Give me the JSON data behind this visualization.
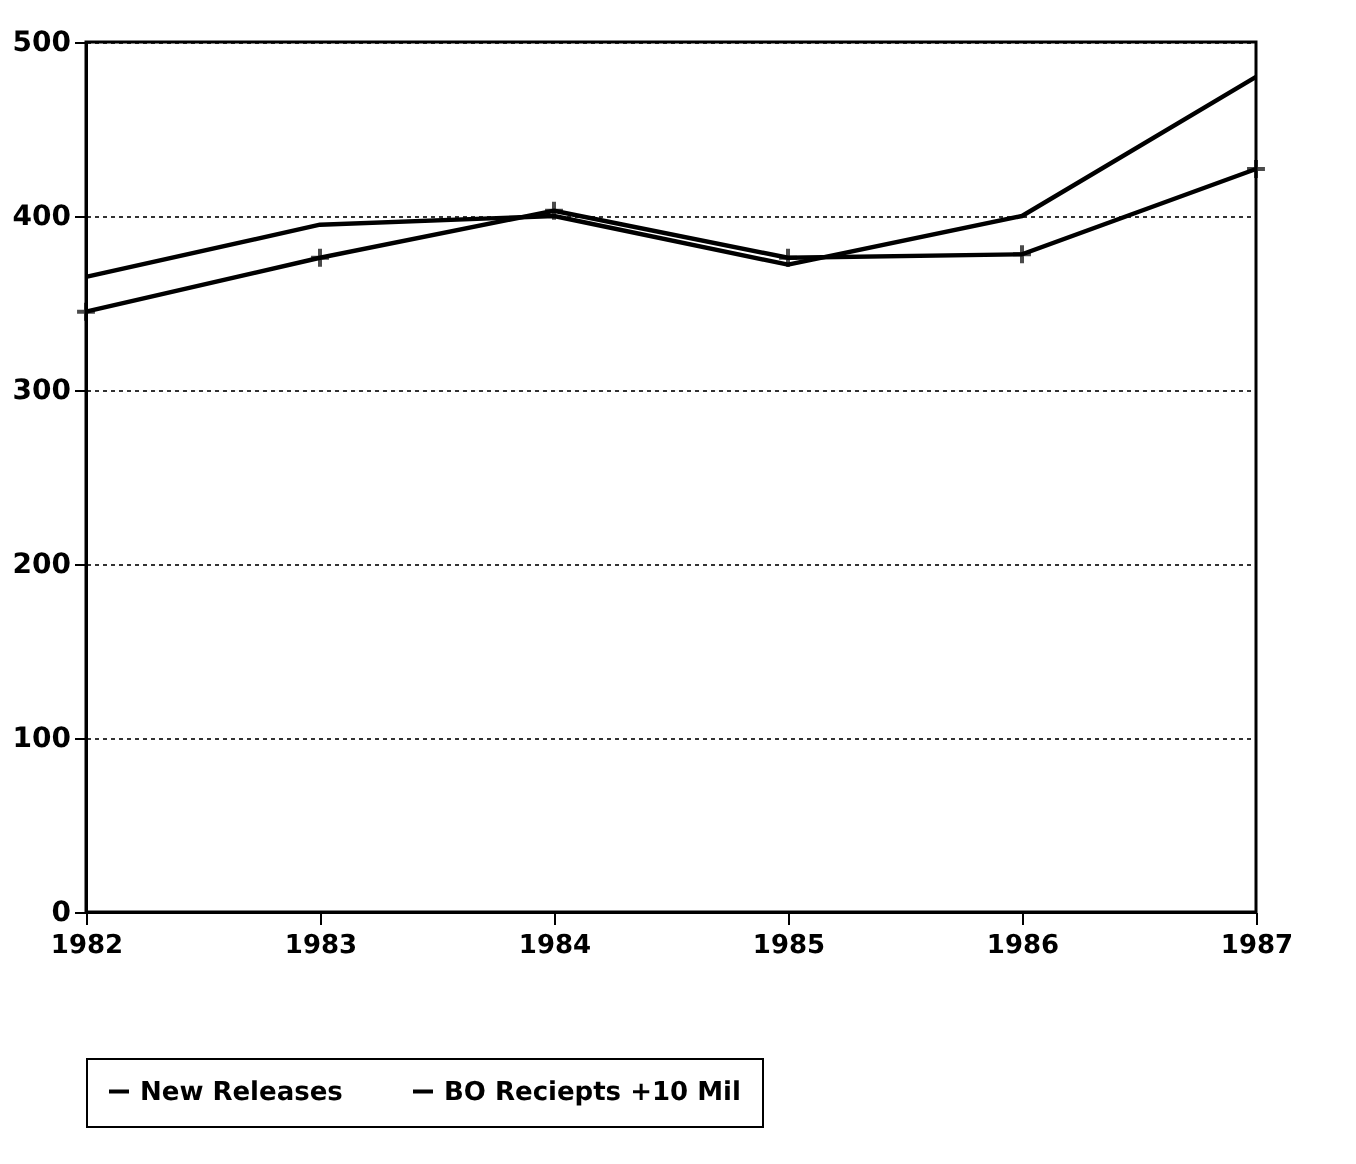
{
  "chart_data": {
    "type": "line",
    "categories": [
      "1982",
      "1983",
      "1984",
      "1985",
      "1986",
      "1987"
    ],
    "series": [
      {
        "name": "New Releases",
        "color": "#000000",
        "marker": "none",
        "values": [
          365,
          395,
          400,
          372,
          400,
          480
        ]
      },
      {
        "name": "BO Reciepts +10 Mil",
        "color": "#000000",
        "marker": "cross",
        "values": [
          345,
          376,
          403,
          376,
          378,
          427
        ]
      }
    ],
    "ylim": [
      0,
      500
    ],
    "yticks": [
      0,
      100,
      200,
      300,
      400,
      500
    ],
    "grid": "y",
    "legend": "bottom",
    "line_style": "solid"
  }
}
